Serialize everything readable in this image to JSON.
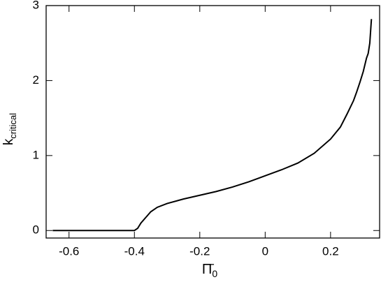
{
  "chart_data": {
    "type": "line",
    "x_label": "Π̄",
    "x_label_sub": "0",
    "y_label": "k",
    "y_label_sub": "critical",
    "xlim": [
      -0.67,
      0.35
    ],
    "ylim": [
      -0.1,
      3
    ],
    "xticks": [
      -0.6,
      -0.4,
      -0.2,
      0,
      0.2
    ],
    "yticks": [
      0,
      1,
      2,
      3
    ],
    "grid": false,
    "series": [
      {
        "color": "#000000",
        "x": [
          -0.65,
          -0.5,
          -0.4,
          -0.39,
          -0.38,
          -0.36,
          -0.35,
          -0.33,
          -0.3,
          -0.25,
          -0.2,
          -0.15,
          -0.1,
          -0.05,
          0,
          0.05,
          0.1,
          0.15,
          0.2,
          0.23,
          0.25,
          0.27,
          0.28,
          0.29,
          0.3,
          0.31,
          0.315,
          0.32,
          0.325
        ],
        "values": [
          0,
          0,
          0,
          0.03,
          0.1,
          0.2,
          0.25,
          0.31,
          0.36,
          0.42,
          0.47,
          0.52,
          0.58,
          0.65,
          0.73,
          0.81,
          0.9,
          1.03,
          1.22,
          1.38,
          1.55,
          1.73,
          1.85,
          1.98,
          2.12,
          2.3,
          2.36,
          2.5,
          2.82
        ]
      }
    ]
  }
}
